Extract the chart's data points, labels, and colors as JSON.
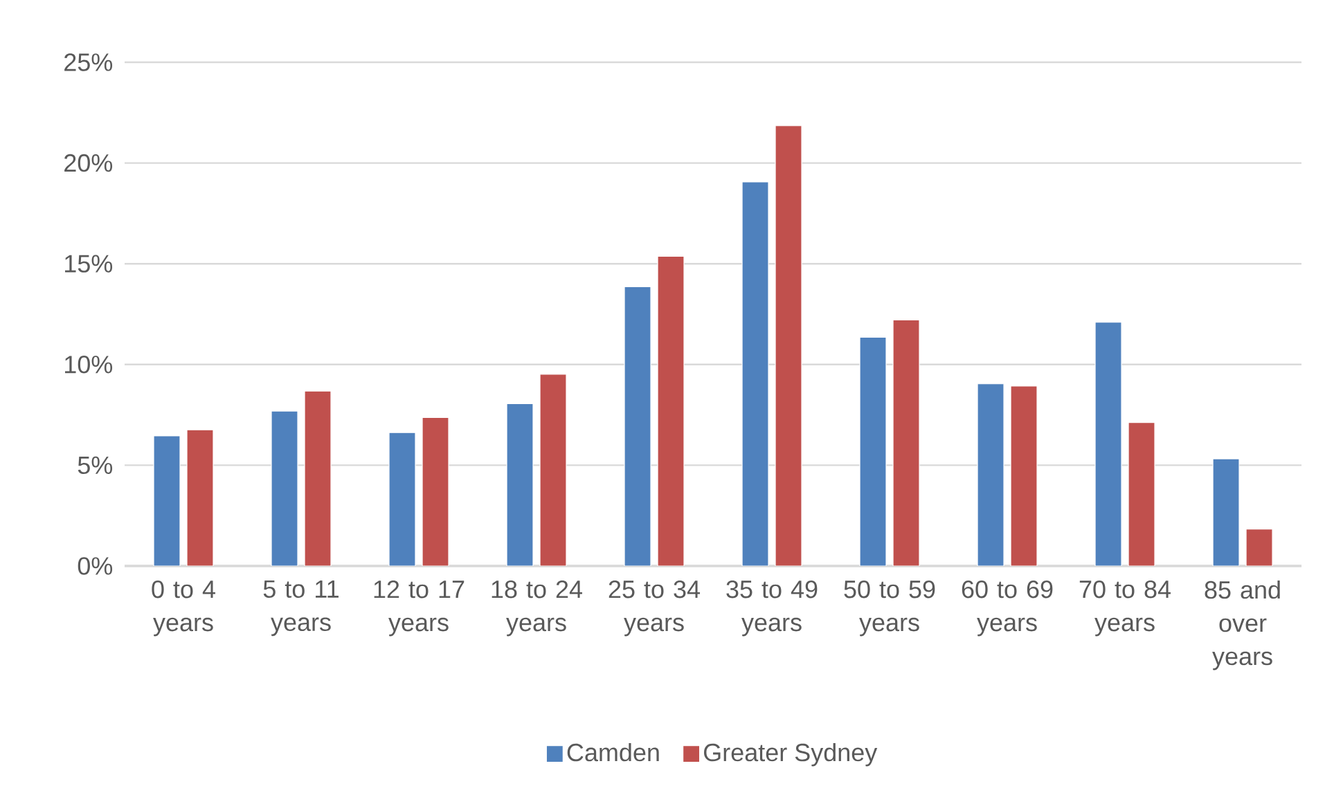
{
  "chart_data": {
    "type": "bar",
    "categories": [
      "0 to 4 years",
      "5 to 11 years",
      "12 to 17 years",
      "18 to 24 years",
      "25 to 34 years",
      "35 to 49 years",
      "50 to 59 years",
      "60 to 69 years",
      "70 to 84 years",
      "85 and over years"
    ],
    "series": [
      {
        "name": "Camden",
        "color": "#4f81bd",
        "values": [
          6.46,
          7.69,
          6.62,
          8.06,
          13.86,
          19.06,
          11.35,
          9.04,
          12.1,
          5.32
        ]
      },
      {
        "name": "Greater Sydney",
        "color": "#c0504d",
        "values": [
          6.76,
          8.68,
          7.37,
          9.52,
          15.37,
          21.85,
          12.21,
          8.93,
          7.12,
          1.83
        ]
      }
    ],
    "ylim": [
      0,
      25
    ],
    "yticks": [
      {
        "value": 0,
        "label": "0%"
      },
      {
        "value": 5,
        "label": "5%"
      },
      {
        "value": 10,
        "label": "10%"
      },
      {
        "value": 15,
        "label": "15%"
      },
      {
        "value": 20,
        "label": "20%"
      },
      {
        "value": 25,
        "label": "25%"
      }
    ],
    "grid": "y",
    "legend": "bottom"
  }
}
